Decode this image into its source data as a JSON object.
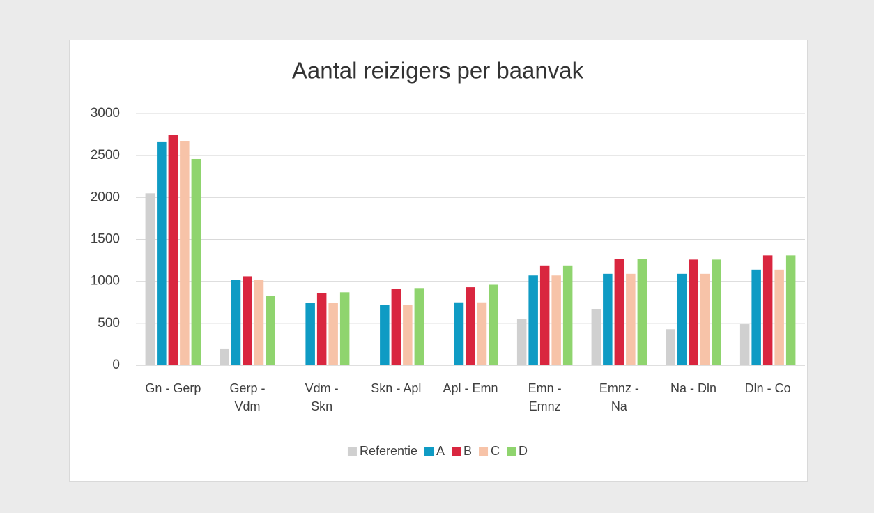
{
  "chart_data": {
    "type": "bar",
    "title": "Aantal reizigers per baanvak",
    "categories": [
      "Gn - Gerp",
      "Gerp - Vdm",
      "Vdm - Skn",
      "Skn - Apl",
      "Apl - Emn",
      "Emn - Emnz",
      "Emnz - Na",
      "Na - Dln",
      "Dln - Co"
    ],
    "series": [
      {
        "name": "Referentie",
        "color": "#d0d0d0",
        "values": [
          2050,
          200,
          0,
          0,
          0,
          550,
          670,
          430,
          490
        ]
      },
      {
        "name": "A",
        "color": "#0f9bc4",
        "values": [
          2660,
          1020,
          740,
          720,
          750,
          1070,
          1090,
          1090,
          1140
        ]
      },
      {
        "name": "B",
        "color": "#d9263f",
        "values": [
          2750,
          1060,
          860,
          910,
          930,
          1190,
          1270,
          1260,
          1310
        ]
      },
      {
        "name": "C",
        "color": "#f7c3a8",
        "values": [
          2670,
          1020,
          740,
          720,
          750,
          1070,
          1090,
          1090,
          1140
        ]
      },
      {
        "name": "D",
        "color": "#8fd46e",
        "values": [
          2460,
          830,
          870,
          920,
          960,
          1190,
          1270,
          1260,
          1310
        ]
      }
    ],
    "ylim": [
      0,
      3000
    ],
    "yticks": [
      0,
      500,
      1000,
      1500,
      2000,
      2500,
      3000
    ],
    "grid": true,
    "legend": "bottom"
  }
}
